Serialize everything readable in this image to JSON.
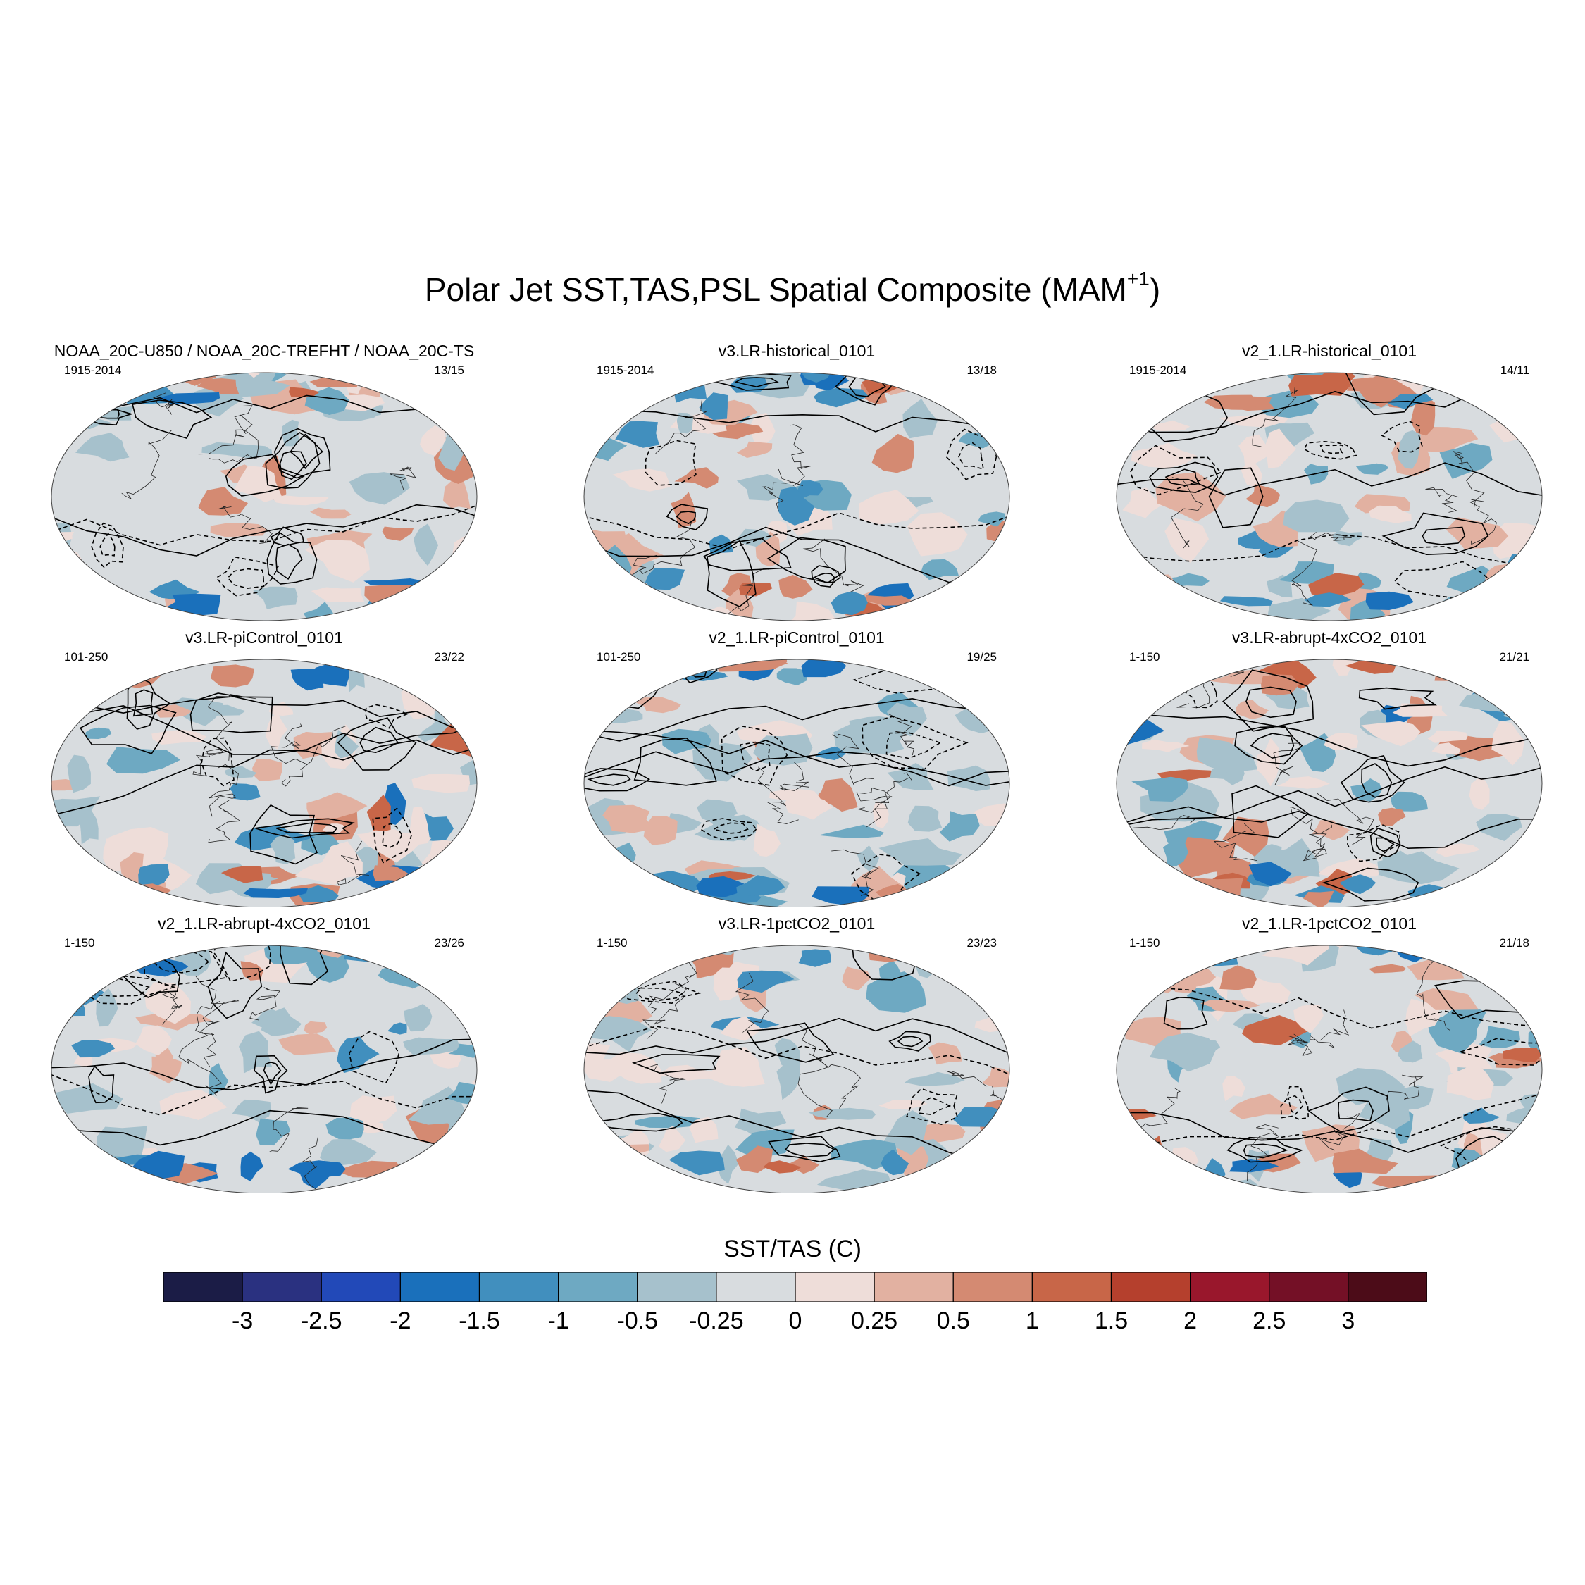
{
  "title": {
    "main": "Polar Jet SST,TAS,PSL Spatial Composite (MAM",
    "superscript": "+1",
    "close": ")"
  },
  "panels": [
    {
      "title": "NOAA_20C-U850 / NOAA_20C-TREFHT / NOAA_20C-TS",
      "years": "1915-2014",
      "count": "13/15"
    },
    {
      "title": "v3.LR-historical_0101",
      "years": "1915-2014",
      "count": "13/18"
    },
    {
      "title": "v2_1.LR-historical_0101",
      "years": "1915-2014",
      "count": "14/11"
    },
    {
      "title": "v3.LR-piControl_0101",
      "years": "101-250",
      "count": "23/22"
    },
    {
      "title": "v2_1.LR-piControl_0101",
      "years": "101-250",
      "count": "19/25"
    },
    {
      "title": "v3.LR-abrupt-4xCO2_0101",
      "years": "1-150",
      "count": "21/21"
    },
    {
      "title": "v2_1.LR-abrupt-4xCO2_0101",
      "years": "1-150",
      "count": "23/26"
    },
    {
      "title": "v3.LR-1pctCO2_0101",
      "years": "1-150",
      "count": "23/23"
    },
    {
      "title": "v2_1.LR-1pctCO2_0101",
      "years": "1-150",
      "count": "21/18"
    }
  ],
  "colorbar": {
    "title": "SST/TAS (C)",
    "labels": [
      "-3",
      "-2.5",
      "-2",
      "-1.5",
      "-1",
      "-0.5",
      "-0.25",
      "0",
      "0.25",
      "0.5",
      "1",
      "1.5",
      "2",
      "2.5",
      "3"
    ],
    "colors": [
      "#1b1c46",
      "#2a3180",
      "#2249b8",
      "#1a70bb",
      "#418fbe",
      "#6ea9c2",
      "#a6c1cc",
      "#d8dcdf",
      "#eeddd9",
      "#e2b1a1",
      "#d48a72",
      "#c86648",
      "#b5402d",
      "#99172c",
      "#741026",
      "#4c0c18"
    ]
  },
  "map_palette": {
    "ocean_base": "#d8dcdf",
    "light_warm": "#eeddd9",
    "light_cool": "#a6c1cc",
    "mid_cool": "#6ea9c2",
    "strong_cool": "#418fbe",
    "deep_cool": "#1a70bb",
    "mid_warm": "#e2b1a1",
    "strong_warm": "#d48a72",
    "deep_warm": "#c86648"
  }
}
